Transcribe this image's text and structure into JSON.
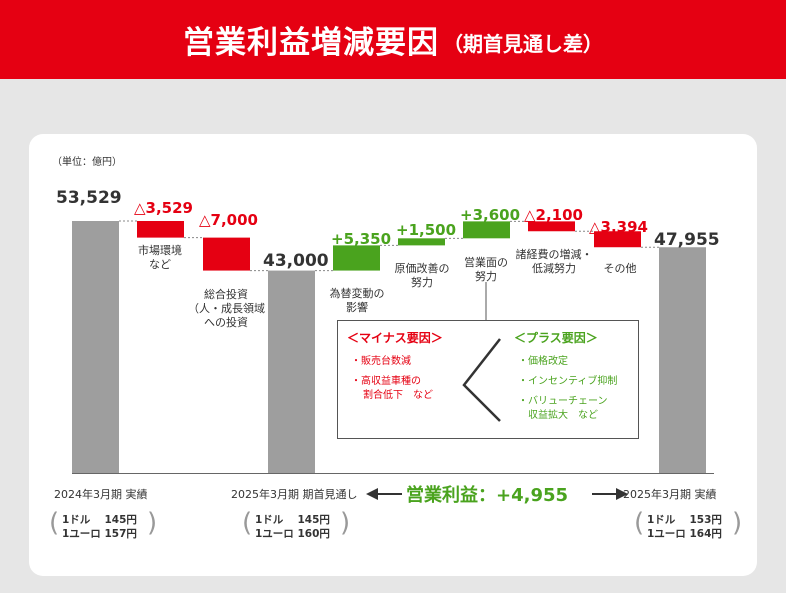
{
  "header": {
    "title": "営業利益増減要因",
    "subtitle": "（期首見通し差）"
  },
  "chart_data": {
    "type": "bar",
    "unit_label": "（単位：億円）",
    "categories": [
      "2024年3月期 実績",
      "市場環境など",
      "総合投資（人・成長領域への投資",
      "2025年3月期 期首見通し",
      "為替変動の影響",
      "原価改善の努力",
      "営業面の努力",
      "諸経費の増減・低減努力",
      "その他",
      "2025年3月期 実績"
    ],
    "steps": [
      {
        "key": "fy24",
        "kind": "total",
        "value": 53529,
        "label": "53,529"
      },
      {
        "key": "market",
        "kind": "neg",
        "value": -3529,
        "label": "△3,529",
        "name_lines": [
          "市場環境",
          "など"
        ]
      },
      {
        "key": "invest",
        "kind": "neg",
        "value": -7000,
        "label": "△7,000",
        "name_lines": [
          "総合投資",
          "（人・成長領域",
          "への投資"
        ]
      },
      {
        "key": "fy25plan",
        "kind": "total",
        "value": 43000,
        "label": "43,000"
      },
      {
        "key": "fx",
        "kind": "pos",
        "value": 5350,
        "label": "+5,350",
        "name_lines": [
          "為替変動の",
          "影響"
        ]
      },
      {
        "key": "cost",
        "kind": "pos",
        "value": 1500,
        "label": "+1,500",
        "name_lines": [
          "原価改善の",
          "努力"
        ]
      },
      {
        "key": "sales",
        "kind": "pos",
        "value": 3600,
        "label": "+3,600",
        "name_lines": [
          "営業面の",
          "努力"
        ]
      },
      {
        "key": "expense",
        "kind": "neg",
        "value": -2100,
        "label": "△2,100",
        "name_lines": [
          "諸経費の増減・",
          "低減努力"
        ]
      },
      {
        "key": "other",
        "kind": "neg",
        "value": -3394,
        "label": "△3,394",
        "name_lines": [
          "その他"
        ]
      },
      {
        "key": "fy25",
        "kind": "total",
        "value": 47955,
        "label": "47,955"
      }
    ],
    "colors": {
      "total": "#9e9e9e",
      "neg": "#e50012",
      "pos": "#4aa31e"
    }
  },
  "annotation": {
    "minus_title": "＜マイナス要因＞",
    "minus_items": [
      "・販売台数減",
      "・高収益車種の",
      "割合低下　など"
    ],
    "plus_title": "＜プラス要因＞",
    "plus_items": [
      "・価格改定",
      "・インセンティブ抑制",
      "・バリューチェーン",
      "収益拡大　など"
    ]
  },
  "conditions": [
    {
      "label": "2024年3月期 実績",
      "usd": "1ドル　 145円",
      "eur": "1ユーロ 157円"
    },
    {
      "label": "2025年3月期 期首見通し",
      "usd": "1ドル　 145円",
      "eur": "1ユーロ 160円"
    },
    {
      "label": "2025年3月期 実績",
      "usd": "1ドル　 153円",
      "eur": "1ユーロ 164円"
    }
  ],
  "operating_profit": "営業利益：+4,955"
}
